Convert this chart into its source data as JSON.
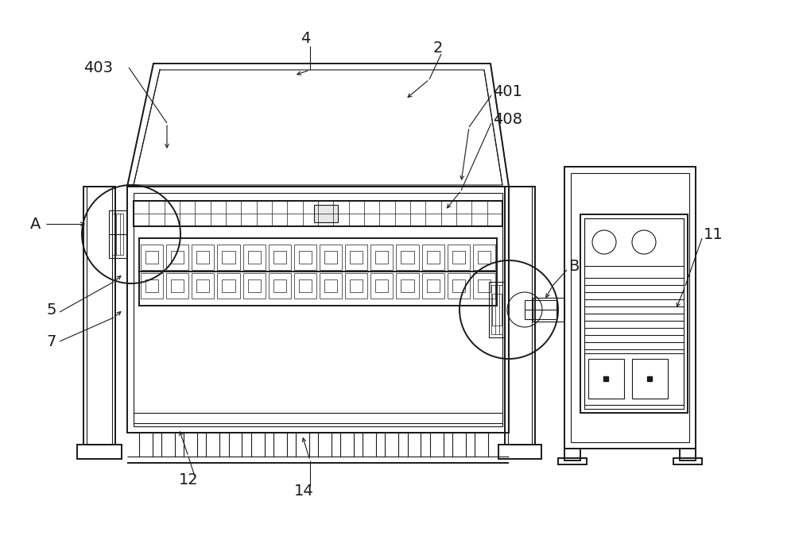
{
  "bg_color": "#ffffff",
  "line_color": "#1a1a1a",
  "figsize": [
    10.0,
    6.94
  ],
  "lw": 1.4,
  "lw2": 0.8,
  "lw3": 0.5
}
